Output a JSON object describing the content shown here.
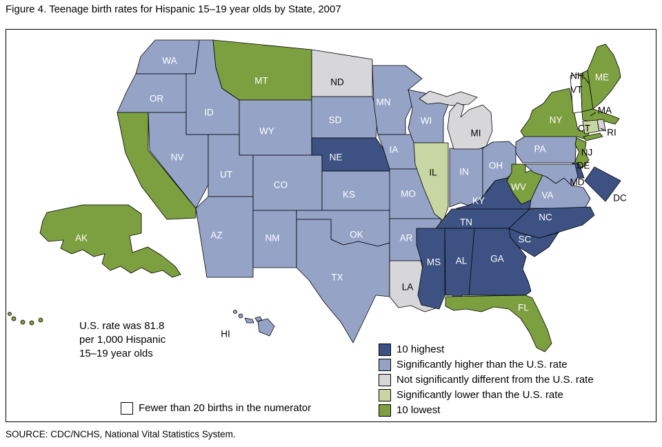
{
  "title": "Figure 4. Teenage birth rates for Hispanic 15–19 year olds by State, 2007",
  "source": "SOURCE: CDC/NCHS, National Vital Statistics System.",
  "us_rate_note": {
    "line1": "U.S. rate was 81.8",
    "line2": "per 1,000 Hispanic",
    "line3": "15–19 year olds"
  },
  "legend": {
    "items": [
      {
        "key": "highest",
        "label": "10 highest",
        "color": "#3D5282"
      },
      {
        "key": "higher",
        "label": "Significantly higher than the U.S. rate",
        "color": "#95A3C7"
      },
      {
        "key": "not_sig",
        "label": "Not significantly different from the U.S. rate",
        "color": "#D7D7D9"
      },
      {
        "key": "lower",
        "label": "Significantly lower than the U.S. rate",
        "color": "#C7D6A2"
      },
      {
        "key": "lowest",
        "label": "10 lowest",
        "color": "#7C9F3F"
      }
    ],
    "few_births": {
      "key": "few",
      "label": "Fewer than 20 births in the numerator",
      "color": "#FFFFFF"
    }
  },
  "map": {
    "stroke_color": "#000000",
    "light_label_color": "#FFFFFF",
    "dark_label_color": "#000000"
  },
  "chart_data": {
    "type": "heatmap",
    "variant": "us_state_choropleth",
    "title": "Figure 4. Teenage birth rates for Hispanic 15–19 year olds by State, 2007",
    "unit": "births per 1,000 Hispanic females aged 15–19",
    "us_rate_per_1000": 81.8,
    "legend_position": "bottom-right",
    "class_labels": {
      "highest": "10 highest",
      "higher": "Significantly higher than the U.S. rate",
      "not_sig": "Not significantly different from the U.S. rate",
      "lower": "Significantly lower than the U.S. rate",
      "lowest": "10 lowest",
      "few": "Fewer than 20 births in the numerator"
    },
    "states": [
      {
        "id": "WA",
        "class": "higher"
      },
      {
        "id": "OR",
        "class": "higher"
      },
      {
        "id": "CA",
        "class": "lowest"
      },
      {
        "id": "NV",
        "class": "higher"
      },
      {
        "id": "ID",
        "class": "higher"
      },
      {
        "id": "MT",
        "class": "lowest"
      },
      {
        "id": "WY",
        "class": "higher"
      },
      {
        "id": "UT",
        "class": "higher"
      },
      {
        "id": "CO",
        "class": "higher"
      },
      {
        "id": "AZ",
        "class": "higher"
      },
      {
        "id": "NM",
        "class": "higher"
      },
      {
        "id": "ND",
        "class": "not_sig",
        "dark_label": true
      },
      {
        "id": "SD",
        "class": "higher"
      },
      {
        "id": "NE",
        "class": "highest"
      },
      {
        "id": "KS",
        "class": "higher"
      },
      {
        "id": "OK",
        "class": "higher"
      },
      {
        "id": "TX",
        "class": "higher"
      },
      {
        "id": "MN",
        "class": "higher"
      },
      {
        "id": "IA",
        "class": "higher"
      },
      {
        "id": "MO",
        "class": "higher"
      },
      {
        "id": "AR",
        "class": "higher"
      },
      {
        "id": "LA",
        "class": "not_sig",
        "dark_label": true
      },
      {
        "id": "WI",
        "class": "higher"
      },
      {
        "id": "IL",
        "class": "lower",
        "dark_label": true
      },
      {
        "id": "IN",
        "class": "higher"
      },
      {
        "id": "OH",
        "class": "higher"
      },
      {
        "id": "MI",
        "class": "not_sig",
        "dark_label": true
      },
      {
        "id": "KY",
        "class": "highest"
      },
      {
        "id": "TN",
        "class": "highest"
      },
      {
        "id": "WV",
        "class": "lowest"
      },
      {
        "id": "VA",
        "class": "higher"
      },
      {
        "id": "NC",
        "class": "highest"
      },
      {
        "id": "SC",
        "class": "highest"
      },
      {
        "id": "GA",
        "class": "highest"
      },
      {
        "id": "AL",
        "class": "highest"
      },
      {
        "id": "MS",
        "class": "highest"
      },
      {
        "id": "FL",
        "class": "lowest"
      },
      {
        "id": "PA",
        "class": "higher"
      },
      {
        "id": "NY",
        "class": "lowest"
      },
      {
        "id": "NJ",
        "class": "lowest",
        "dark_label": true
      },
      {
        "id": "VT",
        "class": "few",
        "dark_label": true
      },
      {
        "id": "NH",
        "class": "lowest",
        "dark_label": true
      },
      {
        "id": "ME",
        "class": "lowest"
      },
      {
        "id": "MA",
        "class": "lowest",
        "dark_label": true
      },
      {
        "id": "CT",
        "class": "lower",
        "dark_label": true
      },
      {
        "id": "RI",
        "class": "not_sig",
        "dark_label": true
      },
      {
        "id": "DE",
        "class": "highest",
        "dark_label": true
      },
      {
        "id": "MD",
        "class": "higher",
        "dark_label": true
      },
      {
        "id": "DC",
        "class": "highest",
        "dark_label": true
      },
      {
        "id": "AK",
        "class": "lowest"
      },
      {
        "id": "HI",
        "class": "higher",
        "dark_label": true
      }
    ]
  }
}
